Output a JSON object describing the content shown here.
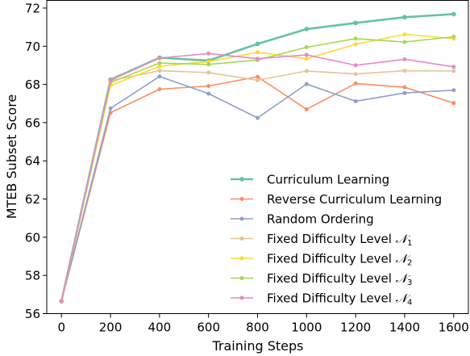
{
  "chart_data": {
    "type": "line",
    "title": "",
    "xlabel": "Training Steps",
    "ylabel": "MTEB Subset Score",
    "x": [
      0,
      200,
      400,
      600,
      800,
      1000,
      1200,
      1400,
      1600
    ],
    "xlim": [
      -60,
      1660
    ],
    "ylim": [
      56,
      72.4
    ],
    "xticks": [
      "0",
      "200",
      "400",
      "600",
      "800",
      "1000",
      "1200",
      "1400",
      "1600"
    ],
    "yticks": [
      "56",
      "58",
      "60",
      "62",
      "64",
      "66",
      "68",
      "70",
      "72"
    ],
    "grid": false,
    "legend_position": "lower-right",
    "series": [
      {
        "name": "Curriculum Learning",
        "color": "#66c2a5",
        "values": [
          56.65,
          68.25,
          69.4,
          69.25,
          70.12,
          70.9,
          71.22,
          71.52,
          71.68
        ]
      },
      {
        "name": "Reverse Curriculum Learning",
        "color": "#fc8d62",
        "values": [
          56.65,
          66.52,
          67.75,
          67.92,
          68.4,
          66.7,
          68.05,
          67.85,
          67.02
        ]
      },
      {
        "name": "Random Ordering",
        "color": "#8da0cb",
        "values": [
          56.65,
          66.75,
          68.42,
          67.52,
          66.25,
          68.02,
          67.12,
          67.55,
          67.7
        ]
      },
      {
        "name": "Fixed Difficulty Level N1",
        "color": "#e5c494",
        "values": [
          56.65,
          68.2,
          68.72,
          68.62,
          68.22,
          68.7,
          68.55,
          68.72,
          68.7
        ]
      },
      {
        "name": "Fixed Difficulty Level N2",
        "color": "#ffd92f",
        "values": [
          56.65,
          67.95,
          68.95,
          69.2,
          69.68,
          69.35,
          70.1,
          70.62,
          70.4
        ]
      },
      {
        "name": "Fixed Difficulty Level N3",
        "color": "#a6d854",
        "values": [
          56.65,
          68.1,
          69.12,
          69.05,
          69.28,
          69.95,
          70.4,
          70.22,
          70.5
        ]
      },
      {
        "name": "Fixed Difficulty Level N4",
        "color": "#e78ac3",
        "values": [
          56.65,
          68.22,
          69.38,
          69.62,
          69.35,
          69.55,
          69.0,
          69.32,
          68.92
        ]
      }
    ],
    "legend_labels": [
      {
        "text": "Fixed Difficulty Level ",
        "sym": "𝒩",
        "sub": "1"
      },
      {
        "text": "Fixed Difficulty Level ",
        "sym": "𝒩",
        "sub": "2"
      },
      {
        "text": "Fixed Difficulty Level ",
        "sym": "𝒩",
        "sub": "3"
      },
      {
        "text": "Fixed Difficulty Level ",
        "sym": "𝒩",
        "sub": "4"
      }
    ]
  }
}
